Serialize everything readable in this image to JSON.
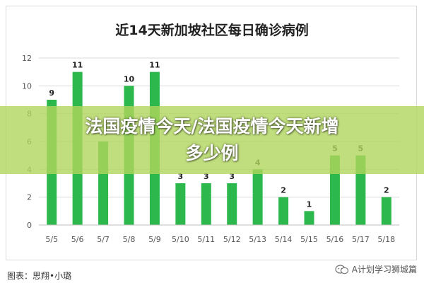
{
  "chart_data": {
    "type": "bar",
    "title": "近14天新加坡社区每日确诊病例",
    "categories": [
      "5/5",
      "5/6",
      "5/7",
      "5/8",
      "5/9",
      "5/10",
      "5/11",
      "5/12",
      "5/13",
      "5/14",
      "5/15",
      "5/16",
      "5/17",
      "5/18"
    ],
    "values": [
      9,
      11,
      6,
      10,
      11,
      3,
      3,
      3,
      4,
      2,
      1,
      5,
      5,
      2
    ],
    "data_labels": [
      "9",
      "11",
      "",
      "10",
      "11",
      "3",
      "3",
      "3",
      "4",
      "2",
      "1",
      "5",
      "5",
      "2"
    ],
    "ylim": [
      0,
      12
    ],
    "yticks": [
      0,
      2,
      4,
      6,
      8,
      10,
      12
    ],
    "grid": true,
    "legend": "none",
    "xlabel": "",
    "ylabel": "",
    "colors": {
      "bar": "#2db84d",
      "label": "#222222",
      "axis": "#555555",
      "grid": "#d9d9d9"
    }
  },
  "overlay": {
    "line1": "法国疫情今天/法国疫情今天新增",
    "line2": "多少例",
    "color": "#b0d65c"
  },
  "source_note": "图表：思翔•小璐",
  "watermark": {
    "icon": "wechat-icon",
    "text": "A计划学习狮城篇"
  }
}
